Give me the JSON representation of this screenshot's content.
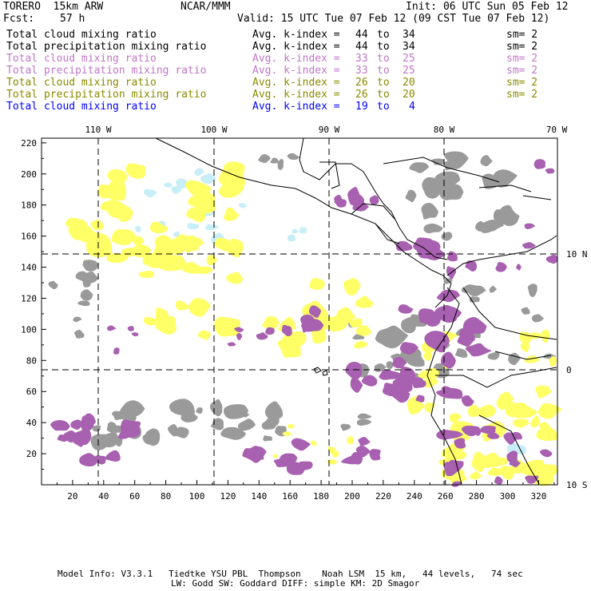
{
  "header": {
    "model": "TORERO  15km ARW",
    "org": "NCAR/MMM",
    "init": "Init: 06 UTC Sun 05 Feb 12",
    "fcst_label": "Fcst:",
    "fcst_value": "57 h",
    "valid": "Valid: 15 UTC Tue 07 Feb 12 (09 CST Tue 07 Feb 12)"
  },
  "legend": [
    {
      "field": "Total cloud mixing ratio",
      "index": "Avg. k-index =",
      "from": "44",
      "to_word": "to",
      "to": "34",
      "sm": "sm= 2",
      "color": "#000000"
    },
    {
      "field": "Total precipitation mixing ratio",
      "index": "Avg. k-index =",
      "from": "44",
      "to_word": "to",
      "to": "34",
      "sm": "sm= 2",
      "color": "#000000"
    },
    {
      "field": "Total cloud mixing ratio",
      "index": "Avg. k-index =",
      "from": "33",
      "to_word": "to",
      "to": "25",
      "sm": "sm= 2",
      "color": "#c077c8"
    },
    {
      "field": "Total precipitation mixing ratio",
      "index": "Avg. k-index =",
      "from": "33",
      "to_word": "to",
      "to": "25",
      "sm": "sm= 2",
      "color": "#c077c8"
    },
    {
      "field": "Total cloud mixing ratio",
      "index": "Avg. k-index =",
      "from": "26",
      "to_word": "to",
      "to": "20",
      "sm": "sm= 2",
      "color": "#8a8a00"
    },
    {
      "field": "Total precipitation mixing ratio",
      "index": "Avg. k-index =",
      "from": "26",
      "to_word": "to",
      "to": "20",
      "sm": "sm= 2",
      "color": "#8a8a00"
    },
    {
      "field": "Total cloud mixing ratio",
      "index": "Avg. k-index =",
      "from": "19",
      "to_word": "to",
      "to": "4",
      "sm": "",
      "color": "#0000ff"
    }
  ],
  "map": {
    "lon_labels": [
      "110 W",
      "100 W",
      "90 W",
      "80 W",
      "70 W"
    ],
    "lat_labels": [
      "10 N",
      "0",
      "10 S"
    ],
    "x_ticks": [
      "20",
      "40",
      "60",
      "80",
      "100",
      "120",
      "140",
      "160",
      "180",
      "200",
      "220",
      "240",
      "260",
      "280",
      "300",
      "320"
    ],
    "y_ticks": [
      "20",
      "40",
      "60",
      "80",
      "100",
      "120",
      "140",
      "160",
      "180",
      "200",
      "220"
    ],
    "colors": {
      "grey": "#9a9a9a",
      "purple": "#a860b0",
      "yellow": "#ffff66",
      "lightblue": "#c8eef8",
      "coast": "#000000"
    }
  },
  "footer": {
    "line1": "Model Info: V3.3.1   Tiedtke YSU PBL  Thompson    Noah LSM  15 km,   44 levels,   74 sec",
    "line2": "LW: Godd SW: Goddard DIFF: simple KM: 2D Smagor"
  }
}
